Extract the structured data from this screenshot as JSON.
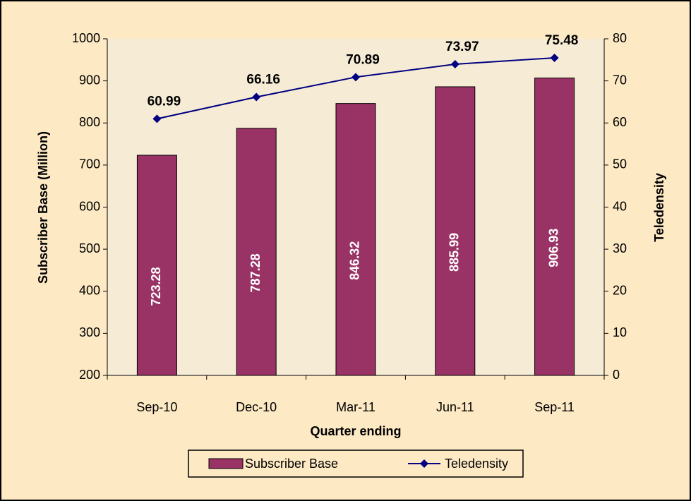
{
  "chart_data": {
    "type": "bar-line",
    "x_label": "Quarter ending",
    "y_label": "Subscriber Base (Million)",
    "y2_label": "Teledensity",
    "categories": [
      "Sep-10",
      "Dec-10",
      "Mar-11",
      "Jun-11",
      "Sep-11"
    ],
    "series": [
      {
        "name": "Subscriber Base",
        "type": "bar",
        "color": "#993366",
        "values": [
          723.28,
          787.28,
          846.32,
          885.99,
          906.93
        ]
      },
      {
        "name": "Teledensity",
        "type": "line",
        "axis": "y2",
        "color": "#000080",
        "values": [
          60.99,
          66.16,
          70.89,
          73.97,
          75.48
        ]
      }
    ],
    "ylim": [
      200,
      1000
    ],
    "yticks": [
      200,
      300,
      400,
      500,
      600,
      700,
      800,
      900,
      1000
    ],
    "y2lim": [
      0,
      80
    ],
    "y2ticks": [
      0,
      10,
      20,
      30,
      40,
      50,
      60,
      70,
      80
    ],
    "legend": "bottom"
  }
}
